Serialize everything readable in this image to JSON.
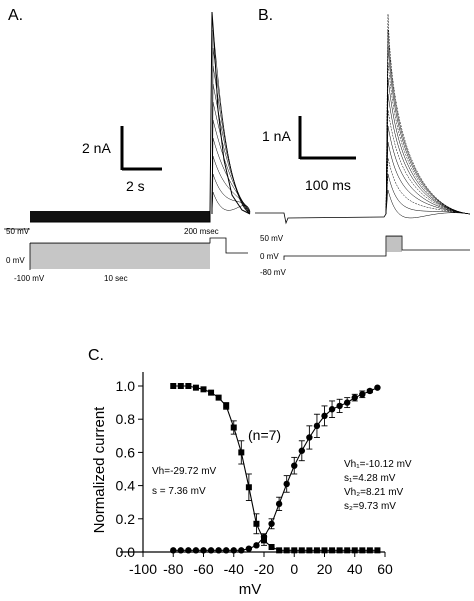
{
  "panels": {
    "a": {
      "label": "A.",
      "scale_current": "2 nA",
      "scale_time": "2 s",
      "protocol_high": "50 mV",
      "protocol_end": "200 msec",
      "protocol_zero": "0 mV",
      "protocol_low": "-100 mV",
      "protocol_duration": "10 sec"
    },
    "b": {
      "label": "B.",
      "scale_current": "1 nA",
      "scale_time": "100 ms",
      "protocol_high": "50 mV",
      "protocol_zero": "0 mV",
      "protocol_low": "-80 mV"
    },
    "c": {
      "label": "C.",
      "annotation_n": "(n=7)",
      "inactivation_params": [
        "Vh=-29.72 mV",
        "s  = 7.36 mV"
      ],
      "activation_params": [
        "Vh₁=-10.12 mV",
        "s₁=4.28 mV",
        "Vh₂=8.21 mV",
        "s₂=9.73 mV"
      ]
    }
  },
  "chart_data": {
    "type": "scatter",
    "xlabel": "mV",
    "ylabel": "Normalized current",
    "xlim": [
      -100,
      60
    ],
    "ylim": [
      0.0,
      1.0
    ],
    "xticks": [
      -100,
      -80,
      -60,
      -40,
      -20,
      0,
      20,
      40,
      60
    ],
    "yticks": [
      0.0,
      0.2,
      0.4,
      0.6,
      0.8,
      1.0
    ],
    "series": [
      {
        "marker": "square",
        "x": [
          -80,
          -75,
          -70,
          -65,
          -60,
          -55,
          -50,
          -45,
          -40,
          -35,
          -30,
          -25,
          -20,
          -15,
          -10,
          -5,
          0,
          5,
          10,
          15,
          20,
          25,
          30,
          35,
          40,
          45,
          50,
          55
        ],
        "y": [
          1.0,
          1.0,
          1.0,
          0.99,
          0.98,
          0.96,
          0.93,
          0.88,
          0.75,
          0.6,
          0.39,
          0.17,
          0.07,
          0.03,
          0.01,
          0.01,
          0.01,
          0.01,
          0.01,
          0.01,
          0.01,
          0.01,
          0.01,
          0.01,
          0.01,
          0.01,
          0.01,
          0.01
        ],
        "err": [
          0,
          0,
          0,
          0,
          0,
          0,
          0,
          0.02,
          0.04,
          0.07,
          0.08,
          0.06,
          0.03,
          0,
          0,
          0,
          0,
          0,
          0,
          0,
          0,
          0,
          0,
          0,
          0,
          0,
          0,
          0
        ]
      },
      {
        "marker": "circle",
        "x": [
          -80,
          -75,
          -70,
          -65,
          -60,
          -55,
          -50,
          -45,
          -40,
          -35,
          -30,
          -25,
          -20,
          -15,
          -10,
          -5,
          0,
          5,
          10,
          15,
          20,
          25,
          30,
          35,
          40,
          45,
          50,
          55
        ],
        "y": [
          0.01,
          0.01,
          0.01,
          0.01,
          0.01,
          0.01,
          0.01,
          0.01,
          0.01,
          0.01,
          0.02,
          0.04,
          0.09,
          0.17,
          0.29,
          0.41,
          0.52,
          0.61,
          0.69,
          0.76,
          0.82,
          0.86,
          0.88,
          0.9,
          0.93,
          0.95,
          0.97,
          0.99
        ],
        "err": [
          0,
          0,
          0,
          0,
          0,
          0,
          0,
          0,
          0,
          0,
          0,
          0,
          0.02,
          0.03,
          0.04,
          0.05,
          0.05,
          0.06,
          0.07,
          0.07,
          0.06,
          0.05,
          0.04,
          0.03,
          0.02,
          0.02,
          0.01,
          0
        ]
      }
    ]
  }
}
